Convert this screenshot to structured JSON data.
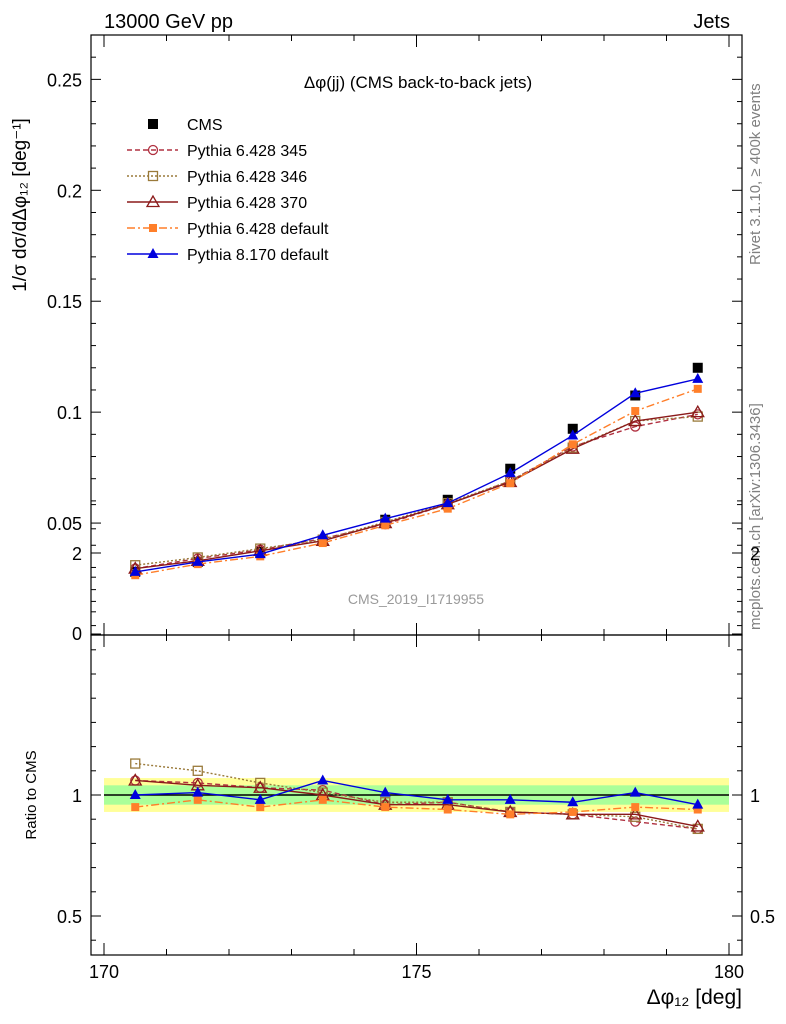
{
  "header": {
    "left": "13000 GeV pp",
    "right": "Jets"
  },
  "side_text": {
    "rivet": "Rivet 3.1.10, ≥ 400k events",
    "mcplots": "mcplots.cern.ch [arXiv:1306.3436]"
  },
  "plot_title": "Δφ(jj) (CMS back-to-back jets)",
  "analysis_id": "CMS_2019_I1719955",
  "ylabel_main": "1/σ dσ/dΔφ₁₂ [deg⁻¹]",
  "ylabel_ratio": "Ratio to CMS",
  "xlabel": "Δφ₁₂ [deg]",
  "colors": {
    "cms": "#000000",
    "p345": "#b03040",
    "p346": "#9a7a3a",
    "p370": "#8b1a1a",
    "p6def": "#ff7f2a",
    "p8def": "#0000dd",
    "band_green": "#aaff99",
    "band_yellow": "#ffff99"
  },
  "chart_data": [
    {
      "type": "line",
      "panel": "main",
      "title": "Δφ(jj) (CMS back-to-back jets)",
      "xlabel": "",
      "ylabel": "1/σ dσ/dΔφ₁₂ [deg⁻¹]",
      "xlim": [
        170,
        180
      ],
      "ylim": [
        0,
        0.27
      ],
      "yticks": [
        "0",
        "0.05",
        "0.1",
        "0.15",
        "0.2",
        "0.25"
      ],
      "yticks_values": [
        0,
        0.05,
        0.1,
        0.15,
        0.2,
        0.25
      ],
      "x": [
        170.5,
        171.5,
        172.5,
        173.5,
        174.5,
        175.5,
        176.5,
        177.5,
        178.5,
        179.5
      ],
      "legend": "top-left",
      "series": [
        {
          "name": "CMS",
          "style": "cms",
          "values": [
            0.028,
            0.0325,
            0.037,
            0.042,
            0.0515,
            0.0605,
            0.0745,
            0.0925,
            0.1075,
            0.12
          ]
        },
        {
          "name": "Pythia 6.428 345",
          "style": "p345",
          "values": [
            0.0295,
            0.034,
            0.038,
            0.043,
            0.0495,
            0.0585,
            0.069,
            0.0845,
            0.0935,
            0.099
          ]
        },
        {
          "name": "Pythia 6.428 346",
          "style": "p346",
          "values": [
            0.031,
            0.0345,
            0.0385,
            0.0425,
            0.0505,
            0.059,
            0.069,
            0.084,
            0.096,
            0.098
          ]
        },
        {
          "name": "Pythia 6.428 370",
          "style": "p370",
          "values": [
            0.0295,
            0.033,
            0.0375,
            0.042,
            0.05,
            0.0585,
            0.0685,
            0.0835,
            0.096,
            0.1
          ]
        },
        {
          "name": "Pythia 6.428 default",
          "style": "p6def",
          "values": [
            0.0265,
            0.0315,
            0.035,
            0.041,
            0.049,
            0.0565,
            0.068,
            0.0855,
            0.1005,
            0.1105
          ]
        },
        {
          "name": "Pythia 8.170 default",
          "style": "p8def",
          "values": [
            0.028,
            0.0325,
            0.036,
            0.0445,
            0.052,
            0.059,
            0.0725,
            0.0895,
            0.1085,
            0.115
          ]
        }
      ]
    },
    {
      "type": "line",
      "panel": "ratio",
      "xlabel": "Δφ₁₂ [deg]",
      "ylabel": "Ratio to CMS",
      "xlim": [
        170,
        180
      ],
      "ylim": [
        0.3,
        2.3
      ],
      "yticks": [
        "0.5",
        "1",
        "2"
      ],
      "yticks_values": [
        0.5,
        1,
        2
      ],
      "xticks": [
        "170",
        "175",
        "180"
      ],
      "xticks_values": [
        170,
        175,
        180
      ],
      "x": [
        170.5,
        171.5,
        172.5,
        173.5,
        174.5,
        175.5,
        176.5,
        177.5,
        178.5,
        179.5
      ],
      "bands": {
        "green_half_width": 0.04,
        "yellow_half_width": 0.07
      },
      "series": [
        {
          "name": "Pythia 6.428 345",
          "style": "p345",
          "values": [
            1.06,
            1.05,
            1.03,
            1.02,
            0.96,
            0.97,
            0.93,
            0.92,
            0.89,
            0.86
          ]
        },
        {
          "name": "Pythia 6.428 346",
          "style": "p346",
          "values": [
            1.13,
            1.1,
            1.05,
            1.01,
            0.97,
            0.97,
            0.93,
            0.92,
            0.91,
            0.86
          ]
        },
        {
          "name": "Pythia 6.428 370",
          "style": "p370",
          "values": [
            1.06,
            1.04,
            1.03,
            1.0,
            0.96,
            0.96,
            0.93,
            0.92,
            0.92,
            0.87
          ]
        },
        {
          "name": "Pythia 6.428 default",
          "style": "p6def",
          "values": [
            0.95,
            0.98,
            0.95,
            0.98,
            0.95,
            0.94,
            0.92,
            0.93,
            0.95,
            0.94
          ]
        },
        {
          "name": "Pythia 8.170 default",
          "style": "p8def",
          "values": [
            1.0,
            1.01,
            0.98,
            1.06,
            1.01,
            0.98,
            0.98,
            0.97,
            1.01,
            0.96
          ]
        }
      ]
    }
  ]
}
